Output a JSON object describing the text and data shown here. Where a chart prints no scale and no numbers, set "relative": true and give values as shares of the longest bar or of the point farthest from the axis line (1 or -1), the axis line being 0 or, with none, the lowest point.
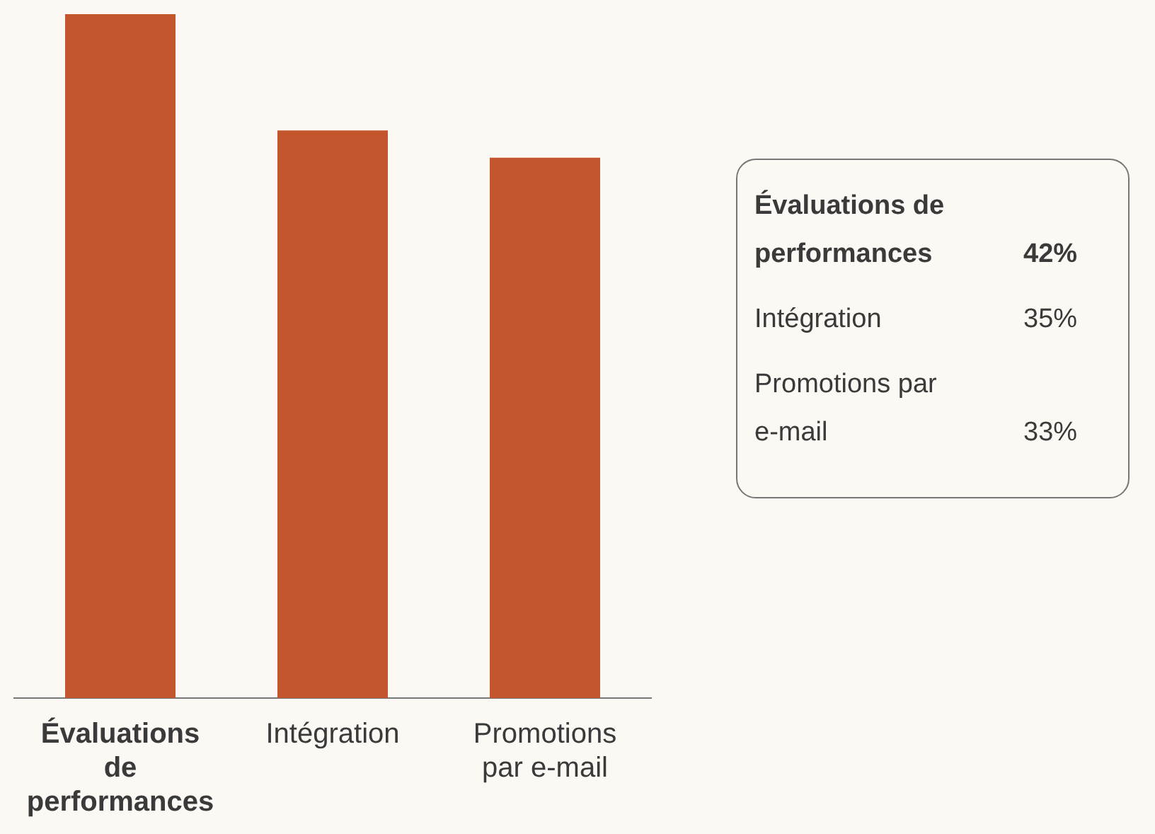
{
  "chart_data": [
    {
      "type": "bar",
      "categories": [
        "Évaluations de performances",
        "Intégration",
        "Promotions par e-mail"
      ],
      "values": [
        1,
        0.83,
        0.79
      ],
      "relative": true,
      "color": "#c4562d",
      "grid": false,
      "legend": false
    },
    {
      "type": "other",
      "categories": [
        "Évaluations de performances",
        "Intégration",
        "Promotions par e-mail"
      ],
      "values": [
        42,
        35,
        33
      ],
      "value_labels": [
        "42%",
        "35%",
        "33%"
      ]
    }
  ]
}
